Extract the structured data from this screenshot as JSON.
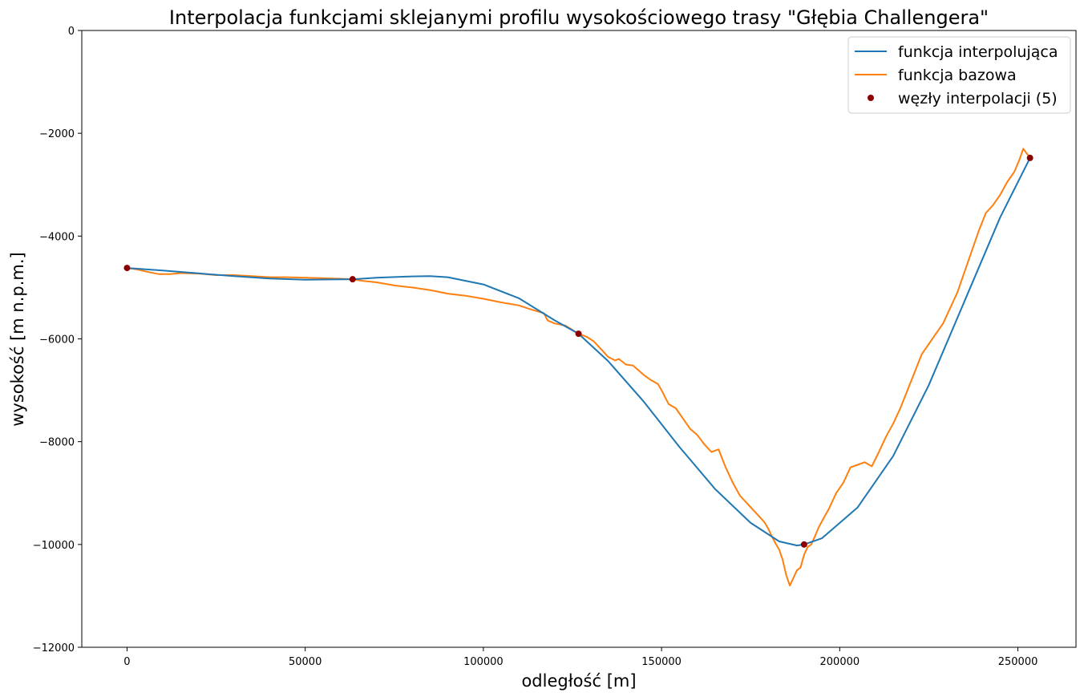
{
  "chart_data": {
    "type": "line",
    "title": "Interpolacja funkcjami sklejanymi profilu wysokościowego trasy \"Głębia Challengera\"",
    "xlabel": "odległość [m]",
    "ylabel": "wysokość [m n.p.m.]",
    "xlim": [
      -12700,
      266300
    ],
    "ylim": [
      -12000,
      0
    ],
    "xticks": [
      0,
      50000,
      100000,
      150000,
      200000,
      250000
    ],
    "xtick_labels": [
      "0",
      "50000",
      "100000",
      "150000",
      "200000",
      "250000"
    ],
    "yticks": [
      0,
      -2000,
      -4000,
      -6000,
      -8000,
      -10000,
      -12000
    ],
    "ytick_labels": [
      "0",
      "−2000",
      "−4000",
      "−6000",
      "−8000",
      "−10000",
      "−12000"
    ],
    "grid": false,
    "legend": "top-right",
    "series": [
      {
        "name": "funkcja interpolująca",
        "color": "#1f77b4",
        "kind": "line",
        "x": [
          0,
          10000,
          20000,
          30000,
          40000,
          50000,
          60000,
          63300,
          70000,
          80000,
          85000,
          90000,
          100000,
          110000,
          120000,
          126700,
          135000,
          145000,
          155000,
          165000,
          175000,
          183000,
          188000,
          190000,
          195000,
          205000,
          215000,
          225000,
          235000,
          245000,
          253400
        ],
        "y": [
          -4620,
          -4670,
          -4725,
          -4780,
          -4825,
          -4850,
          -4840,
          -4840,
          -4810,
          -4785,
          -4780,
          -4800,
          -4940,
          -5210,
          -5640,
          -5900,
          -6430,
          -7220,
          -8100,
          -8920,
          -9580,
          -9940,
          -10020,
          -10000,
          -9880,
          -9280,
          -8280,
          -6900,
          -5270,
          -3640,
          -2480
        ]
      },
      {
        "name": "funkcja bazowa",
        "color": "#ff7f0e",
        "kind": "line",
        "x": [
          0,
          3000,
          6000,
          9000,
          12000,
          15000,
          20000,
          25000,
          30000,
          35000,
          40000,
          45000,
          50000,
          55000,
          60000,
          63300,
          66000,
          70000,
          75000,
          80000,
          85000,
          90000,
          95000,
          100000,
          105000,
          110000,
          113000,
          115000,
          117000,
          118000,
          120000,
          123000,
          126700,
          129000,
          131000,
          133000,
          135000,
          137000,
          138000,
          140000,
          142000,
          145000,
          147000,
          149000,
          150000,
          152000,
          154000,
          156000,
          158000,
          160000,
          162000,
          164000,
          166000,
          168000,
          170000,
          172000,
          174000,
          176000,
          178000,
          179000,
          180000,
          181000,
          182000,
          183000,
          184000,
          185000,
          186000,
          187000,
          188000,
          189000,
          190000,
          191000,
          192000,
          193000,
          194000,
          195000,
          197000,
          199000,
          201000,
          203000,
          205000,
          207000,
          209000,
          211000,
          213000,
          215000,
          217000,
          219000,
          221000,
          223000,
          225000,
          227000,
          229000,
          231000,
          233000,
          235000,
          237000,
          239000,
          241000,
          243000,
          245000,
          247000,
          249000,
          250500,
          251500,
          253400
        ],
        "y": [
          -4620,
          -4650,
          -4700,
          -4740,
          -4740,
          -4720,
          -4730,
          -4760,
          -4760,
          -4780,
          -4800,
          -4800,
          -4810,
          -4820,
          -4830,
          -4840,
          -4870,
          -4900,
          -4960,
          -5000,
          -5050,
          -5120,
          -5160,
          -5220,
          -5290,
          -5350,
          -5420,
          -5460,
          -5500,
          -5640,
          -5700,
          -5740,
          -5900,
          -5960,
          -6050,
          -6200,
          -6350,
          -6420,
          -6390,
          -6500,
          -6520,
          -6700,
          -6800,
          -6880,
          -7000,
          -7270,
          -7350,
          -7550,
          -7750,
          -7870,
          -8050,
          -8200,
          -8150,
          -8500,
          -8800,
          -9050,
          -9200,
          -9350,
          -9500,
          -9580,
          -9700,
          -9850,
          -9980,
          -10100,
          -10300,
          -10600,
          -10800,
          -10650,
          -10500,
          -10450,
          -10200,
          -10050,
          -10000,
          -9850,
          -9680,
          -9550,
          -9300,
          -9000,
          -8800,
          -8500,
          -8450,
          -8400,
          -8480,
          -8200,
          -7900,
          -7650,
          -7350,
          -7000,
          -6650,
          -6300,
          -6100,
          -5900,
          -5700,
          -5400,
          -5100,
          -4700,
          -4300,
          -3900,
          -3550,
          -3400,
          -3200,
          -2950,
          -2750,
          -2500,
          -2300,
          -2480
        ]
      },
      {
        "name": "węzły interpolacji (5)",
        "color": "#8b0000",
        "kind": "scatter",
        "x": [
          0,
          63300,
          126700,
          190000,
          253400
        ],
        "y": [
          -4620,
          -4840,
          -5900,
          -10000,
          -2480
        ]
      }
    ]
  }
}
